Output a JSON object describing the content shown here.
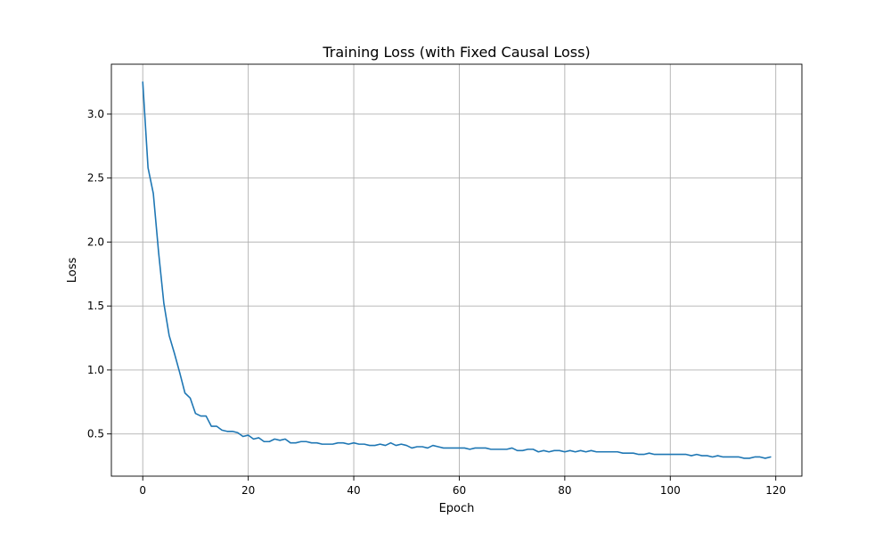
{
  "chart_data": {
    "type": "line",
    "title": "Training Loss (with Fixed Causal Loss)",
    "xlabel": "Epoch",
    "ylabel": "Loss",
    "xlim": [
      -5.95,
      124.95
    ],
    "ylim": [
      0.17,
      3.39
    ],
    "xticks": [
      0,
      20,
      40,
      60,
      80,
      100,
      120
    ],
    "yticks": [
      0.5,
      1.0,
      1.5,
      2.0,
      2.5,
      3.0
    ],
    "xtick_labels": [
      "0",
      "20",
      "40",
      "60",
      "80",
      "100",
      "120"
    ],
    "ytick_labels": [
      "0.5",
      "1.0",
      "1.5",
      "2.0",
      "2.5",
      "3.0"
    ],
    "grid": true,
    "line_color": "#1f77b4",
    "series": [
      {
        "x": [
          0,
          1,
          2,
          3,
          4,
          5,
          6,
          7,
          8,
          9,
          10,
          11,
          12,
          13,
          14,
          15,
          16,
          17,
          18,
          19,
          20,
          21,
          22,
          23,
          24,
          25,
          26,
          27,
          28,
          29,
          30,
          31,
          32,
          33,
          34,
          35,
          36,
          37,
          38,
          39,
          40,
          41,
          42,
          43,
          44,
          45,
          46,
          47,
          48,
          49,
          50,
          51,
          52,
          53,
          54,
          55,
          56,
          57,
          58,
          59,
          60,
          61,
          62,
          63,
          64,
          65,
          66,
          67,
          68,
          69,
          70,
          71,
          72,
          73,
          74,
          75,
          76,
          77,
          78,
          79,
          80,
          81,
          82,
          83,
          84,
          85,
          86,
          87,
          88,
          89,
          90,
          91,
          92,
          93,
          94,
          95,
          96,
          97,
          98,
          99,
          100,
          101,
          102,
          103,
          104,
          105,
          106,
          107,
          108,
          109,
          110,
          111,
          112,
          113,
          114,
          115,
          116,
          117,
          118,
          119
        ],
        "values": [
          3.25,
          2.58,
          2.38,
          1.92,
          1.52,
          1.27,
          1.13,
          0.98,
          0.82,
          0.78,
          0.66,
          0.64,
          0.64,
          0.56,
          0.56,
          0.53,
          0.52,
          0.52,
          0.51,
          0.48,
          0.49,
          0.46,
          0.47,
          0.44,
          0.44,
          0.46,
          0.45,
          0.46,
          0.43,
          0.43,
          0.44,
          0.44,
          0.43,
          0.43,
          0.42,
          0.42,
          0.42,
          0.43,
          0.43,
          0.42,
          0.43,
          0.42,
          0.42,
          0.41,
          0.41,
          0.42,
          0.41,
          0.43,
          0.41,
          0.42,
          0.41,
          0.39,
          0.4,
          0.4,
          0.39,
          0.41,
          0.4,
          0.39,
          0.39,
          0.39,
          0.39,
          0.39,
          0.38,
          0.39,
          0.39,
          0.39,
          0.38,
          0.38,
          0.38,
          0.38,
          0.39,
          0.37,
          0.37,
          0.38,
          0.38,
          0.36,
          0.37,
          0.36,
          0.37,
          0.37,
          0.36,
          0.37,
          0.36,
          0.37,
          0.36,
          0.37,
          0.36,
          0.36,
          0.36,
          0.36,
          0.36,
          0.35,
          0.35,
          0.35,
          0.34,
          0.34,
          0.35,
          0.34,
          0.34,
          0.34,
          0.34,
          0.34,
          0.34,
          0.34,
          0.33,
          0.34,
          0.33,
          0.33,
          0.32,
          0.33,
          0.32,
          0.32,
          0.32,
          0.32,
          0.31,
          0.31,
          0.32,
          0.32,
          0.31,
          0.32
        ]
      }
    ]
  }
}
